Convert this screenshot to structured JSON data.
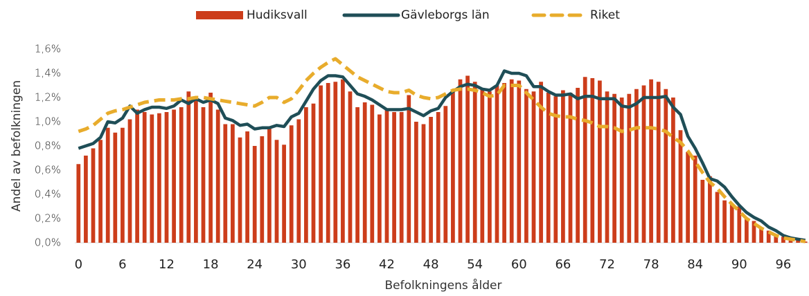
{
  "chart_data": {
    "type": "combo",
    "x_label": "Befolkningens ålder",
    "y_label": "Andel av befolkningen",
    "categories": [
      0,
      null,
      null,
      null,
      null,
      null,
      6,
      null,
      null,
      null,
      null,
      null,
      12,
      null,
      null,
      null,
      null,
      null,
      18,
      null,
      null,
      null,
      null,
      null,
      24,
      null,
      null,
      null,
      null,
      null,
      30,
      null,
      null,
      null,
      null,
      null,
      36,
      null,
      null,
      null,
      null,
      null,
      42,
      null,
      null,
      null,
      null,
      null,
      48,
      null,
      null,
      null,
      null,
      null,
      54,
      null,
      null,
      null,
      null,
      null,
      60,
      null,
      null,
      null,
      null,
      null,
      66,
      null,
      null,
      null,
      null,
      null,
      72,
      null,
      null,
      null,
      null,
      null,
      78,
      null,
      null,
      null,
      null,
      null,
      84,
      null,
      null,
      null,
      null,
      null,
      90,
      null,
      null,
      null,
      null,
      null,
      96,
      null,
      null,
      null
    ],
    "ylim": [
      0,
      1.6
    ],
    "yticks": [
      {
        "value": 0,
        "label": "0,0%"
      },
      {
        "value": 0.2,
        "label": "0,2%"
      },
      {
        "value": 0.4,
        "label": "0,4%"
      },
      {
        "value": 0.6,
        "label": "0,6%"
      },
      {
        "value": 0.8,
        "label": "0,8%"
      },
      {
        "value": 1.0,
        "label": "1,0%"
      },
      {
        "value": 1.2,
        "label": "1,2%"
      },
      {
        "value": 1.4,
        "label": "1,4%"
      },
      {
        "value": 1.6,
        "label": "1,6%"
      }
    ],
    "legend": "top",
    "series": [
      {
        "name": "Hudiksvall",
        "type": "bar",
        "color": "#cc3d1b",
        "values": [
          0.65,
          0.72,
          0.78,
          0.85,
          0.95,
          0.91,
          0.95,
          1.02,
          1.1,
          1.08,
          1.06,
          1.07,
          1.08,
          1.1,
          1.12,
          1.25,
          1.18,
          1.12,
          1.24,
          1.1,
          0.98,
          0.98,
          0.87,
          0.92,
          0.8,
          0.88,
          0.95,
          0.85,
          0.81,
          0.97,
          1.02,
          1.12,
          1.15,
          1.3,
          1.32,
          1.33,
          1.35,
          1.25,
          1.12,
          1.16,
          1.14,
          1.06,
          1.1,
          1.08,
          1.08,
          1.22,
          1.0,
          0.98,
          1.04,
          1.08,
          1.13,
          1.25,
          1.35,
          1.38,
          1.33,
          1.28,
          1.25,
          1.3,
          1.32,
          1.35,
          1.34,
          1.27,
          1.25,
          1.33,
          1.24,
          1.21,
          1.26,
          1.24,
          1.28,
          1.37,
          1.36,
          1.34,
          1.25,
          1.23,
          1.2,
          1.23,
          1.27,
          1.3,
          1.35,
          1.33,
          1.27,
          1.2,
          0.93,
          0.75,
          0.72,
          0.52,
          0.55,
          0.42,
          0.35,
          0.32,
          0.3,
          0.2,
          0.18,
          0.12,
          0.1,
          0.07,
          0.05,
          0.03,
          0.02,
          0.01
        ]
      },
      {
        "name": "Gävleborgs län",
        "type": "line",
        "color": "#1f4e57",
        "values": [
          0.78,
          0.8,
          0.82,
          0.87,
          1.0,
          0.99,
          1.03,
          1.13,
          1.07,
          1.1,
          1.12,
          1.12,
          1.11,
          1.13,
          1.18,
          1.15,
          1.19,
          1.16,
          1.18,
          1.15,
          1.03,
          1.01,
          0.97,
          0.98,
          0.94,
          0.95,
          0.95,
          0.97,
          0.96,
          1.04,
          1.07,
          1.17,
          1.27,
          1.34,
          1.38,
          1.38,
          1.37,
          1.3,
          1.23,
          1.21,
          1.18,
          1.14,
          1.1,
          1.1,
          1.1,
          1.11,
          1.08,
          1.05,
          1.09,
          1.11,
          1.2,
          1.25,
          1.29,
          1.31,
          1.3,
          1.27,
          1.26,
          1.3,
          1.42,
          1.4,
          1.4,
          1.38,
          1.29,
          1.29,
          1.25,
          1.22,
          1.22,
          1.23,
          1.19,
          1.21,
          1.21,
          1.19,
          1.19,
          1.19,
          1.13,
          1.12,
          1.15,
          1.2,
          1.2,
          1.2,
          1.21,
          1.12,
          1.06,
          0.88,
          0.78,
          0.66,
          0.53,
          0.51,
          0.46,
          0.38,
          0.31,
          0.25,
          0.21,
          0.18,
          0.13,
          0.1,
          0.06,
          0.04,
          0.03,
          0.02
        ]
      },
      {
        "name": "Riket",
        "type": "line",
        "dashed": true,
        "color": "#e8ac2c",
        "values": [
          0.92,
          0.94,
          0.97,
          1.02,
          1.07,
          1.09,
          1.1,
          1.12,
          1.14,
          1.16,
          1.17,
          1.18,
          1.18,
          1.18,
          1.19,
          1.19,
          1.2,
          1.2,
          1.19,
          1.18,
          1.17,
          1.16,
          1.15,
          1.14,
          1.13,
          1.16,
          1.2,
          1.2,
          1.16,
          1.19,
          1.26,
          1.34,
          1.4,
          1.45,
          1.49,
          1.52,
          1.47,
          1.42,
          1.37,
          1.34,
          1.31,
          1.28,
          1.25,
          1.24,
          1.24,
          1.26,
          1.22,
          1.2,
          1.19,
          1.2,
          1.23,
          1.26,
          1.27,
          1.27,
          1.26,
          1.24,
          1.21,
          1.22,
          1.3,
          1.3,
          1.3,
          1.24,
          1.18,
          1.12,
          1.07,
          1.05,
          1.04,
          1.04,
          1.02,
          1.01,
          0.99,
          0.96,
          0.96,
          0.95,
          0.92,
          0.93,
          0.95,
          0.95,
          0.95,
          0.94,
          0.92,
          0.87,
          0.83,
          0.76,
          0.67,
          0.58,
          0.5,
          0.45,
          0.38,
          0.32,
          0.26,
          0.2,
          0.16,
          0.12,
          0.09,
          0.06,
          0.04,
          0.03,
          0.02,
          0.01
        ]
      }
    ]
  }
}
